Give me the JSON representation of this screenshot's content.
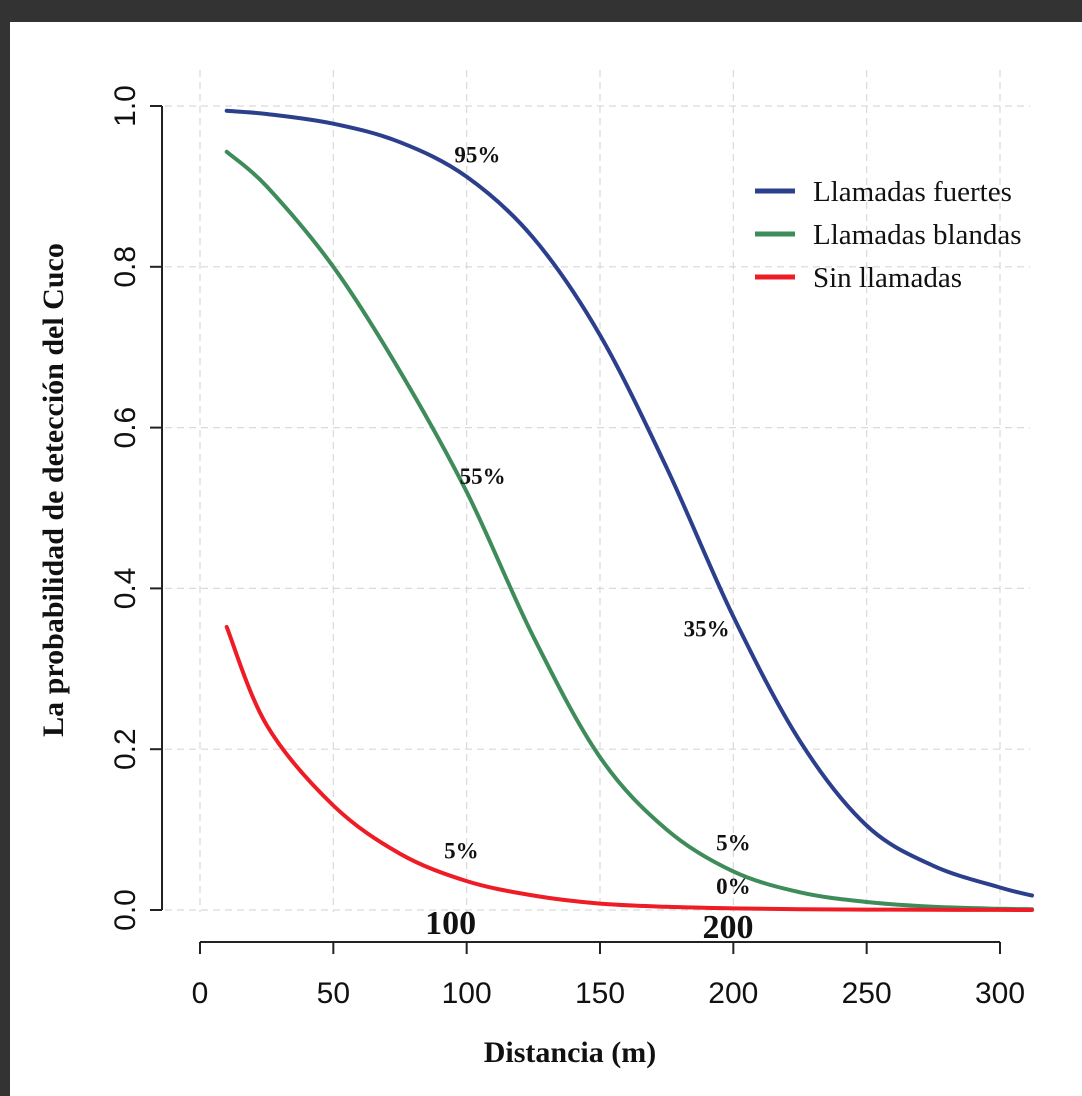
{
  "chart_data": {
    "type": "line",
    "title": "",
    "xlabel": "Distancia (m)",
    "ylabel": "La probabilidad de detección del Cuco",
    "xlim": [
      0,
      310
    ],
    "ylim": [
      0,
      1
    ],
    "x_ticks": [
      "0",
      "50",
      "100",
      "150",
      "200",
      "250",
      "300"
    ],
    "y_ticks": [
      "0.0",
      "0.2",
      "0.4",
      "0.6",
      "0.8",
      "1.0"
    ],
    "grid": true,
    "legend_position": "top-right",
    "series": [
      {
        "name": "Llamadas fuertes",
        "color": "#2b3f8c",
        "x": [
          10,
          25,
          50,
          75,
          100,
          125,
          150,
          175,
          200,
          225,
          250,
          275,
          300,
          312
        ],
        "y": [
          0.994,
          0.99,
          0.978,
          0.955,
          0.912,
          0.836,
          0.715,
          0.55,
          0.365,
          0.21,
          0.105,
          0.055,
          0.028,
          0.018
        ]
      },
      {
        "name": "Llamadas blandas",
        "color": "#3e8c5a",
        "x": [
          10,
          25,
          50,
          75,
          100,
          125,
          150,
          175,
          200,
          225,
          250,
          275,
          300,
          312
        ],
        "y": [
          0.943,
          0.9,
          0.8,
          0.67,
          0.52,
          0.34,
          0.19,
          0.1,
          0.048,
          0.022,
          0.01,
          0.004,
          0.0015,
          0.001
        ]
      },
      {
        "name": "Sin llamadas",
        "color": "#ee1c24",
        "x": [
          10,
          25,
          50,
          75,
          100,
          125,
          150,
          175,
          200,
          225,
          250,
          275,
          300,
          312
        ],
        "y": [
          0.352,
          0.23,
          0.13,
          0.07,
          0.036,
          0.018,
          0.008,
          0.004,
          0.002,
          0.001,
          0.0005,
          0.0002,
          0.0001,
          0
        ]
      }
    ],
    "annotations": [
      {
        "text": "95%",
        "x": 104,
        "y": 0.93,
        "size": "normal"
      },
      {
        "text": "55%",
        "x": 106,
        "y": 0.53,
        "size": "normal"
      },
      {
        "text": "35%",
        "x": 190,
        "y": 0.34,
        "size": "normal"
      },
      {
        "text": "5%",
        "x": 98,
        "y": 0.064,
        "size": "normal"
      },
      {
        "text": "5%",
        "x": 200,
        "y": 0.074,
        "size": "normal"
      },
      {
        "text": "0%",
        "x": 200,
        "y": 0.02,
        "size": "normal"
      },
      {
        "text": "100",
        "x": 94,
        "y": -0.03,
        "size": "big"
      },
      {
        "text": "200",
        "x": 198,
        "y": -0.035,
        "size": "big"
      }
    ]
  }
}
